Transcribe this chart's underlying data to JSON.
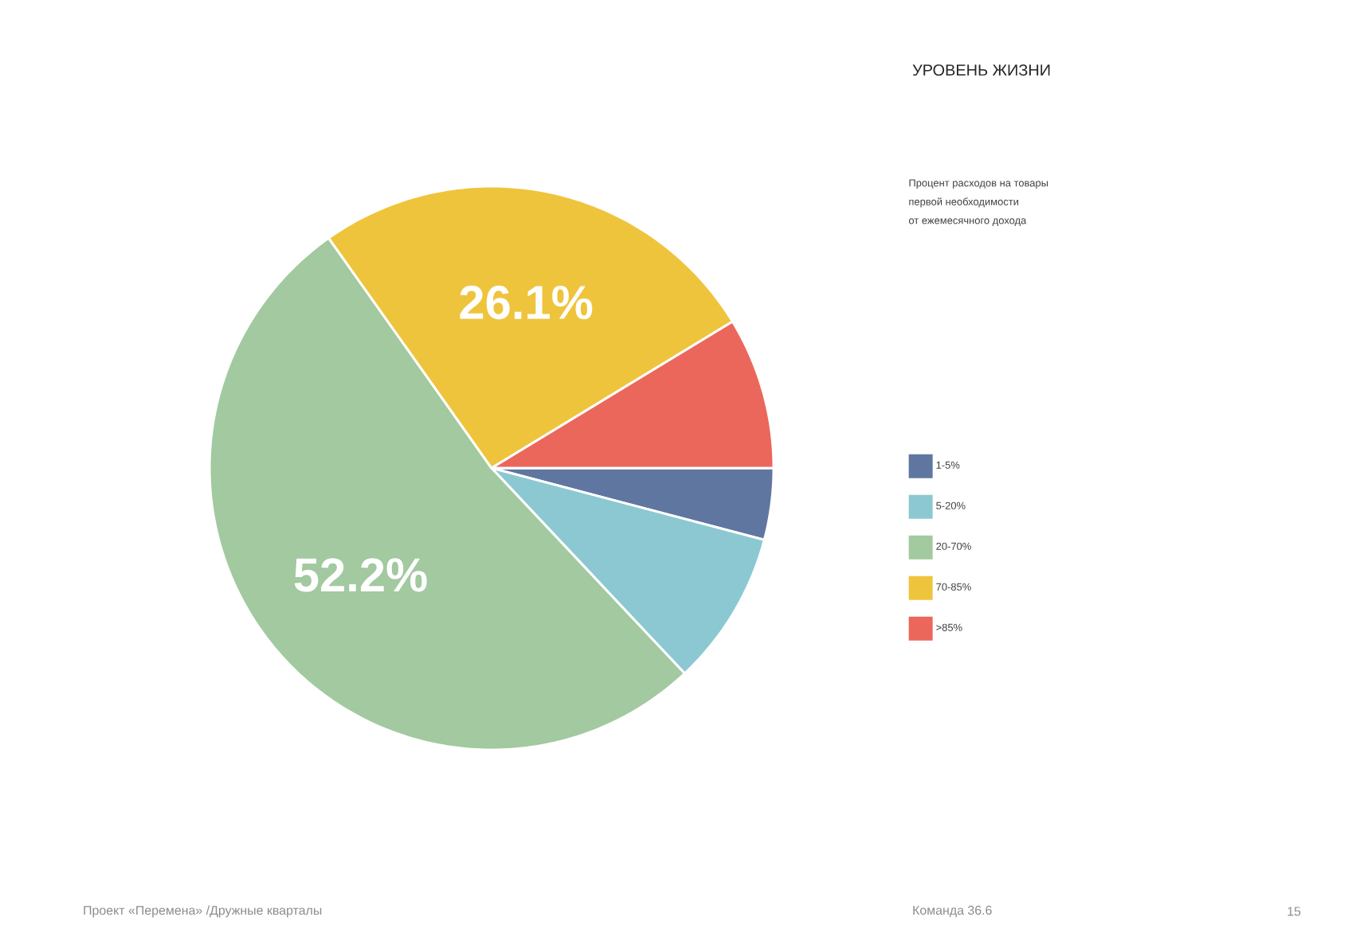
{
  "chart_data": {
    "type": "pie",
    "title": "УРОВЕНЬ ЖИЗНИ",
    "subtitle": "Процент расходов на товары\nпервой необходимости\nот ежемесячного дохода",
    "categories": [
      "1-5%",
      "5-20%",
      "20-70%",
      "70-85%",
      ">85%"
    ],
    "values": [
      4.1,
      8.9,
      52.2,
      26.1,
      8.7
    ],
    "colors": [
      "#5f77a0",
      "#8cc8d2",
      "#a2c99f",
      "#efc43d",
      "#eb675b"
    ],
    "value_labels": [
      null,
      null,
      "52.2%",
      "26.1%",
      null
    ],
    "legend": "right",
    "annotations": [
      "Проект «Перемена» /Дружные кварталы",
      "Команда 36.6",
      "15"
    ]
  }
}
